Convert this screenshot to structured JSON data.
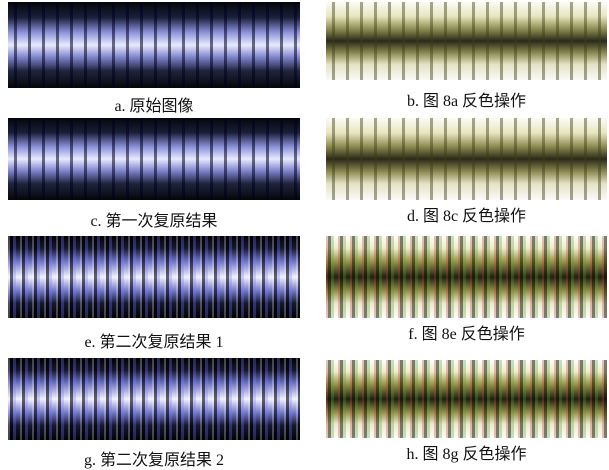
{
  "figure": {
    "panels": [
      {
        "caption": "a. 原始图像"
      },
      {
        "caption": "b. 图 8a 反色操作"
      },
      {
        "caption": "c. 第一次复原结果"
      },
      {
        "caption": "d. 图 8c 反色操作"
      },
      {
        "caption": "e. 第二次复原结果 1"
      },
      {
        "caption": "f. 图 8e 反色操作"
      },
      {
        "caption": "g. 第二次复原结果 2"
      },
      {
        "caption": "h. 图 8g 反色操作"
      }
    ]
  }
}
